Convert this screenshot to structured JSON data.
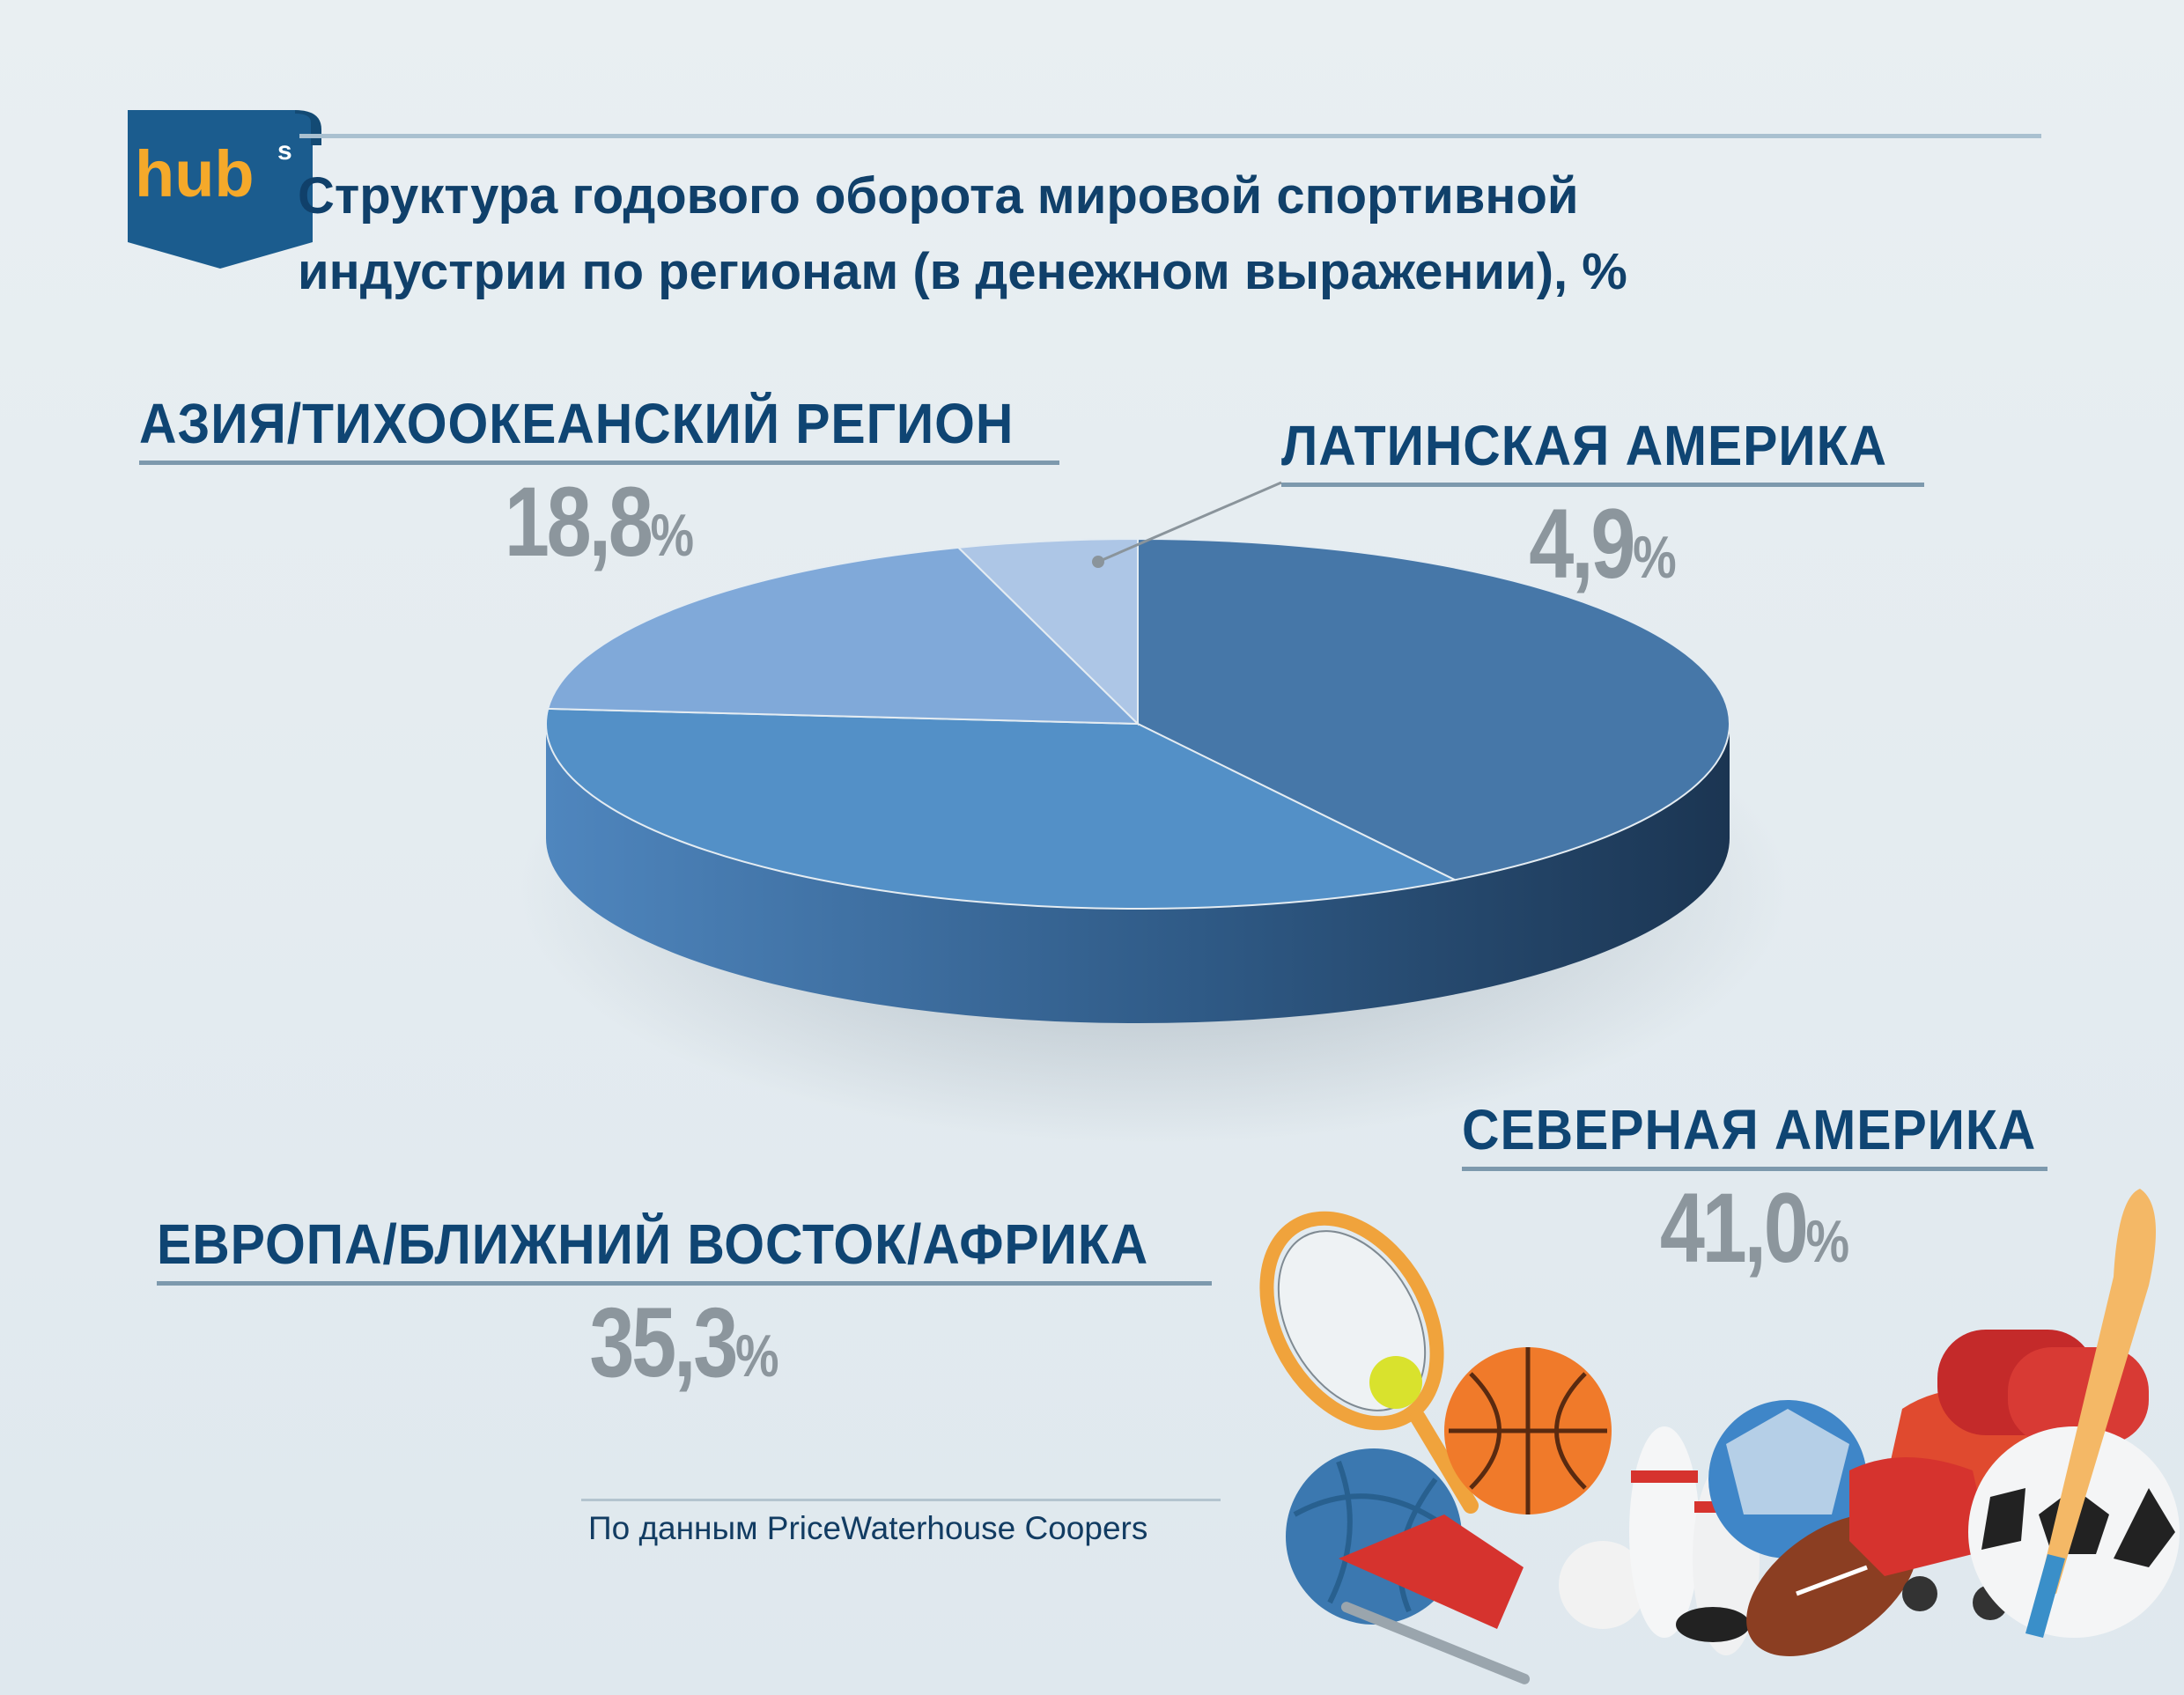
{
  "brand": {
    "logo_text": "hub",
    "logo_sup": "s"
  },
  "title": {
    "line1": "Структура годового оборота мировой спортивной",
    "line2": "индустрии по регионам (в денежном выражении), %"
  },
  "chart_data": {
    "type": "pie",
    "title": "Структура годового оборота мировой спортивной индустрии по регионам (в денежном выражении), %",
    "unit": "%",
    "slices": [
      {
        "label": "СЕВЕРНАЯ АМЕРИКА",
        "value": 41.0,
        "value_text": "41,0",
        "color": "#4677a8"
      },
      {
        "label": "ЕВРОПА/БЛИЖНИЙ ВОСТОК/АФРИКА",
        "value": 35.3,
        "value_text": "35,3",
        "color": "#5390c7"
      },
      {
        "label": "АЗИЯ/ТИХООКЕАНСКИЙ РЕГИОН",
        "value": 18.8,
        "value_text": "18,8",
        "color": "#80a9d9"
      },
      {
        "label": "ЛАТИНСКАЯ АМЕРИКА",
        "value": 4.9,
        "value_text": "4,9",
        "color": "#adc6e6"
      }
    ]
  },
  "colors": {
    "title": "#10406a",
    "label": "#0f4573",
    "value": "#8c969d"
  },
  "source": "По данным PriceWaterhouse Coopers",
  "decoration": "sports-equipment-illustration"
}
